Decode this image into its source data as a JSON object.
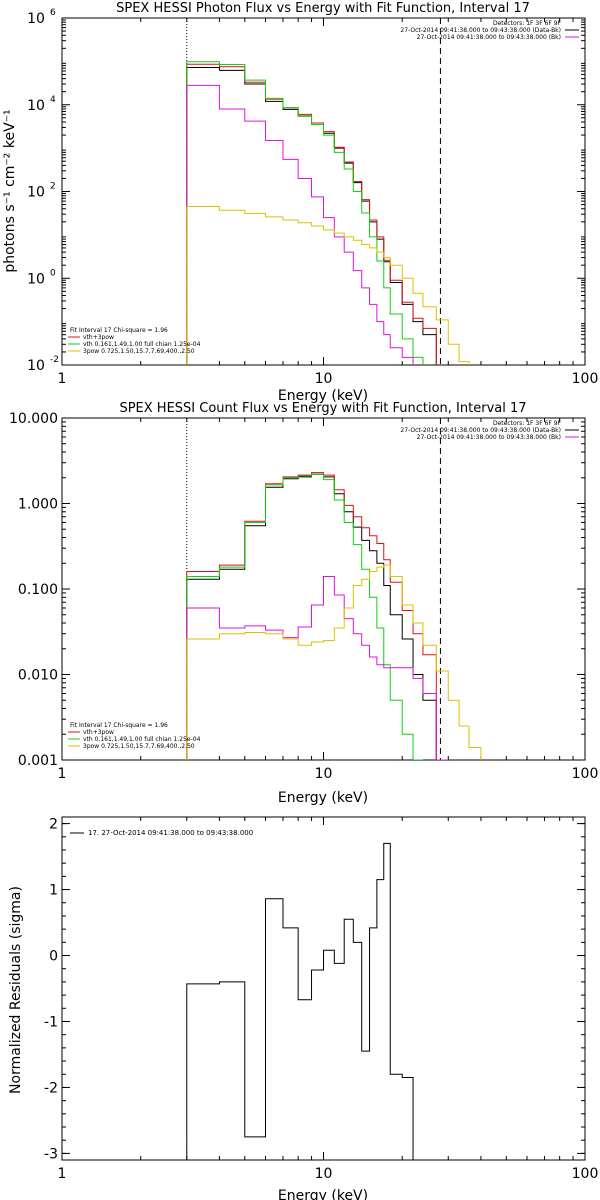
{
  "colors": {
    "black": "#000000",
    "red": "#e01010",
    "green": "#10d010",
    "magenta": "#e010e0",
    "yellow": "#e0c000"
  },
  "energy_edges": [
    3.0,
    4.0,
    5.0,
    6.0,
    7.0,
    8.0,
    9.0,
    10.0,
    11.0,
    12.0,
    13.0,
    14.0,
    15.0,
    16.0,
    17.0,
    18.0,
    20.0,
    22.0,
    24.0,
    27.0,
    30.0,
    33.0,
    36.0,
    40.0,
    45.0
  ],
  "fit_range_keV": [
    3.0,
    28.0
  ],
  "chart_data": [
    {
      "type": "line",
      "title": "SPEX HESSI Photon Flux vs Energy with Fit Function, Interval 17",
      "xlabel": "Energy (keV)",
      "ylabel": "photons s⁻¹ cm⁻² keV⁻¹",
      "xscale": "log",
      "yscale": "log",
      "xlim": [
        1,
        100
      ],
      "ylim": [
        0.01,
        1000000
      ],
      "xticks": [
        {
          "v": 1,
          "t": "1"
        },
        {
          "v": 10,
          "t": "10"
        },
        {
          "v": 100,
          "t": "100"
        }
      ],
      "yticks": [
        {
          "v": 0.01,
          "base": "10",
          "exp": "-2"
        },
        {
          "v": 1,
          "base": "10",
          "exp": "0"
        },
        {
          "v": 100,
          "base": "10",
          "exp": "2"
        },
        {
          "v": 10000,
          "base": "10",
          "exp": "4"
        },
        {
          "v": 1000000,
          "base": "10",
          "exp": "6"
        }
      ],
      "legend_tr": [
        "Detectors: 1F 3F 6F 9F",
        "27-Oct-2014 09:41:38.000 to 09:43:38.000 (Data-Bk)",
        "27-Oct-2014 09:41:38.000 to 09:43:38.000 (Bk)"
      ],
      "legend_tr_colors": [
        "none",
        "#000000",
        "#e010e0"
      ],
      "legend_bl": [
        "Fit Interval 17    Chi-square = 1.96",
        "vth+3pow",
        "vth 0.161,1.49,1.00  full chian 1.25e-04",
        "3pow 0.725,1.50,15.7,7.69,400.,2.50"
      ],
      "legend_bl_colors": [
        "none",
        "#e01010",
        "#10d010",
        "#e0c000"
      ],
      "series": [
        {
          "color": "#000000",
          "values": [
            72000,
            62000,
            30000,
            12000,
            7800,
            5500,
            3500,
            2200,
            1000,
            450,
            160,
            60,
            20,
            8,
            2.4,
            0.8,
            0.25,
            0.1,
            0.05,
            null,
            null,
            null,
            null,
            null
          ]
        },
        {
          "color": "#e01010",
          "values": [
            86000,
            75000,
            33000,
            13500,
            8500,
            6000,
            3800,
            2400,
            1050,
            480,
            170,
            65,
            22,
            9,
            2.6,
            0.9,
            0.28,
            0.12,
            0.07,
            null,
            null,
            null,
            null,
            null
          ]
        },
        {
          "color": "#10d010",
          "values": [
            98000,
            85000,
            37000,
            14000,
            8500,
            5600,
            3500,
            2000,
            800,
            330,
            100,
            32,
            9,
            2.5,
            0.6,
            0.15,
            0.04,
            0.015,
            null,
            null,
            null,
            null,
            null,
            null
          ]
        },
        {
          "color": "#e010e0",
          "values": [
            28000,
            8000,
            4200,
            1500,
            550,
            200,
            75,
            25,
            9,
            4,
            1.5,
            0.6,
            0.25,
            0.1,
            0.05,
            0.025,
            0.015,
            null,
            null,
            null,
            null,
            null,
            null,
            null
          ]
        },
        {
          "color": "#e0c000",
          "values": [
            45,
            37,
            31,
            26,
            22,
            19,
            16,
            13,
            11,
            9,
            7.5,
            6,
            5,
            4,
            3,
            2,
            1,
            0.45,
            0.22,
            0.11,
            0.03,
            0.012,
            null,
            null
          ]
        }
      ]
    },
    {
      "type": "line",
      "title": "SPEX HESSI Count Flux vs Energy with Fit Function, Interval 17",
      "xlabel": "Energy (keV)",
      "ylabel": "",
      "xscale": "log",
      "yscale": "log",
      "xlim": [
        1,
        100
      ],
      "ylim": [
        0.001,
        10
      ],
      "xticks": [
        {
          "v": 1,
          "t": "1"
        },
        {
          "v": 10,
          "t": "10"
        },
        {
          "v": 100,
          "t": "100"
        }
      ],
      "yticks": [
        {
          "v": 0.001,
          "t": "0.001"
        },
        {
          "v": 0.01,
          "t": "0.010"
        },
        {
          "v": 0.1,
          "t": "0.100"
        },
        {
          "v": 1,
          "t": "1.000"
        },
        {
          "v": 10,
          "t": "10.000"
        }
      ],
      "legend_tr": [
        "Detectors: 1F 3F 6F 9F",
        "27-Oct-2014 09:41:38.000 to 09:43:38.000 (Data-Bk)",
        "27-Oct-2014 09:41:38.000 to 09:43:38.000 (Bk)"
      ],
      "legend_tr_colors": [
        "none",
        "#000000",
        "#e010e0"
      ],
      "legend_bl": [
        "Fit Interval 17    Chi-square = 1.96",
        "vth+3pow",
        "vth 0.161,1.49,1.00  full chian 1.25e-04",
        "3pow 0.725,1.50,15.7,7.69,400.,2.50"
      ],
      "legend_bl_colors": [
        "none",
        "#e01010",
        "#10d010",
        "#e0c000"
      ],
      "series": [
        {
          "color": "#000000",
          "values": [
            0.13,
            0.17,
            0.55,
            1.55,
            1.95,
            2.05,
            2.2,
            2.05,
            1.3,
            0.8,
            0.53,
            0.37,
            0.28,
            0.2,
            0.11,
            0.05,
            0.026,
            0.01,
            0.005,
            null,
            null,
            null,
            null,
            null
          ]
        },
        {
          "color": "#e01010",
          "values": [
            0.16,
            0.19,
            0.62,
            1.7,
            2.05,
            2.15,
            2.3,
            2.15,
            1.45,
            0.95,
            0.7,
            0.52,
            0.42,
            0.34,
            0.22,
            0.12,
            0.056,
            0.03,
            0.017,
            null,
            null,
            null,
            null,
            null
          ]
        },
        {
          "color": "#10d010",
          "values": [
            0.14,
            0.18,
            0.6,
            1.65,
            2.0,
            2.1,
            2.2,
            1.9,
            1.1,
            0.6,
            0.33,
            0.17,
            0.08,
            0.035,
            0.013,
            0.005,
            0.002,
            0.001,
            null,
            null,
            null,
            null,
            null,
            null
          ]
        },
        {
          "color": "#e010e0",
          "values": [
            0.06,
            0.035,
            0.037,
            0.033,
            0.027,
            0.036,
            0.065,
            0.14,
            0.085,
            0.045,
            0.03,
            0.022,
            0.016,
            0.013,
            0.012,
            0.012,
            0.012,
            0.009,
            0.006,
            0.001,
            null,
            null,
            null,
            null
          ]
        },
        {
          "color": "#e0c000",
          "values": [
            0.026,
            0.03,
            0.031,
            0.03,
            0.026,
            0.022,
            0.024,
            0.025,
            0.035,
            0.06,
            0.11,
            0.13,
            0.16,
            0.18,
            0.19,
            0.14,
            0.065,
            0.04,
            0.022,
            0.011,
            0.005,
            0.0025,
            0.0014,
            null
          ]
        }
      ]
    },
    {
      "type": "line",
      "title": "",
      "xlabel": "Energy (keV)",
      "ylabel": "Normalized Residuals (sigma)",
      "xscale": "log",
      "yscale": "linear",
      "xlim": [
        1,
        100
      ],
      "ylim": [
        -3.1,
        2.1
      ],
      "xticks": [
        {
          "v": 1,
          "t": "1"
        },
        {
          "v": 10,
          "t": "10"
        },
        {
          "v": 100,
          "t": "100"
        }
      ],
      "yticks": [
        {
          "v": -3,
          "t": "-3"
        },
        {
          "v": -2,
          "t": "-2"
        },
        {
          "v": -1,
          "t": "-1"
        },
        {
          "v": 0,
          "t": "0"
        },
        {
          "v": 1,
          "t": "1"
        },
        {
          "v": 2,
          "t": "2"
        }
      ],
      "legend_tl": [
        "17. 27-Oct-2014 09:41:38.000 to 09:43:38.000"
      ],
      "series": [
        {
          "color": "#000000",
          "edges": [
            3,
            4,
            5,
            6,
            7,
            8,
            9,
            10,
            11,
            12,
            13,
            14,
            15,
            16,
            17,
            18,
            20,
            22,
            24,
            27
          ],
          "values": [
            -0.43,
            -0.4,
            -2.75,
            0.86,
            0.42,
            -0.67,
            -0.22,
            0.08,
            -0.12,
            0.55,
            0.2,
            -1.45,
            0.42,
            1.15,
            1.7,
            -1.8,
            -1.85,
            null,
            null
          ]
        }
      ]
    }
  ]
}
